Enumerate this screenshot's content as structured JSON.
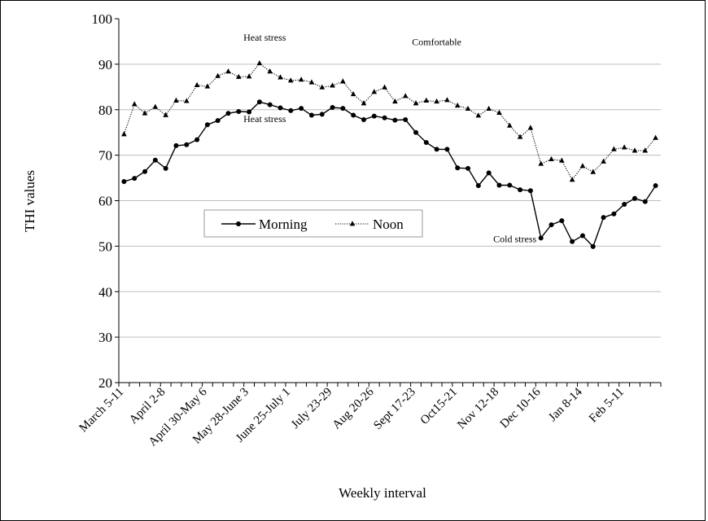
{
  "chart_data": {
    "type": "line",
    "xlabel": "Weekly interval",
    "ylabel": "THI values",
    "ylim": [
      20,
      100
    ],
    "yticks": [
      20,
      30,
      40,
      50,
      60,
      70,
      80,
      90,
      100
    ],
    "grid": "horizontal",
    "legend_position": "center-left",
    "x_tick_labels": [
      "March 5-11",
      "April 2-8",
      "April 30-May 6",
      "May 28-June 3",
      "June 25-July 1",
      "July 23-29",
      "Aug 20-26",
      "Sept 17-23",
      "Oct15-21",
      "Nov 12-18",
      "Dec 10-16",
      "Jan 8-14",
      "Feb 5-11"
    ],
    "series": [
      {
        "name": "Morning",
        "color": "#000000",
        "style": "solid",
        "marker": "circle",
        "values": [
          64.2,
          64.9,
          66.4,
          68.9,
          67.1,
          72.1,
          72.3,
          73.4,
          76.7,
          77.6,
          79.2,
          79.6,
          79.5,
          81.7,
          81.1,
          80.4,
          79.8,
          80.3,
          78.8,
          79.0,
          80.5,
          80.3,
          78.8,
          77.8,
          78.6,
          78.2,
          77.7,
          77.8,
          75.0,
          72.8,
          71.3,
          71.3,
          67.2,
          67.1,
          63.3,
          66.1,
          63.4,
          63.4,
          62.4,
          62.2,
          51.8,
          54.7,
          55.6,
          51.0,
          52.3,
          49.9,
          56.3,
          57.1,
          59.2,
          60.5,
          59.8,
          63.3
        ]
      },
      {
        "name": "Noon",
        "color": "#000000",
        "style": "dotted",
        "marker": "triangle",
        "values": [
          74.6,
          81.2,
          79.2,
          80.6,
          78.8,
          82.0,
          81.9,
          85.4,
          85.1,
          87.4,
          88.4,
          87.2,
          87.3,
          90.2,
          88.4,
          87.1,
          86.4,
          86.6,
          86.0,
          84.9,
          85.3,
          86.2,
          83.4,
          81.4,
          83.9,
          84.9,
          81.8,
          83.0,
          81.4,
          82.0,
          81.8,
          82.1,
          80.9,
          80.2,
          78.7,
          80.2,
          79.3,
          76.5,
          74.0,
          76.0,
          68.1,
          69.1,
          68.8,
          64.6,
          67.6,
          66.3,
          68.6,
          71.3,
          71.7,
          71.0,
          71.0,
          73.8
        ]
      }
    ],
    "annotations": [
      {
        "text": "Heat stress",
        "x_index": 13.5,
        "y": 95.2
      },
      {
        "text": "Comfortable",
        "x_index": 30,
        "y": 94.2
      },
      {
        "text": "Heat stress",
        "x_index": 13.5,
        "y": 77.3
      },
      {
        "text": "Cold stress",
        "x_index": 37.5,
        "y": 50.9
      }
    ]
  }
}
